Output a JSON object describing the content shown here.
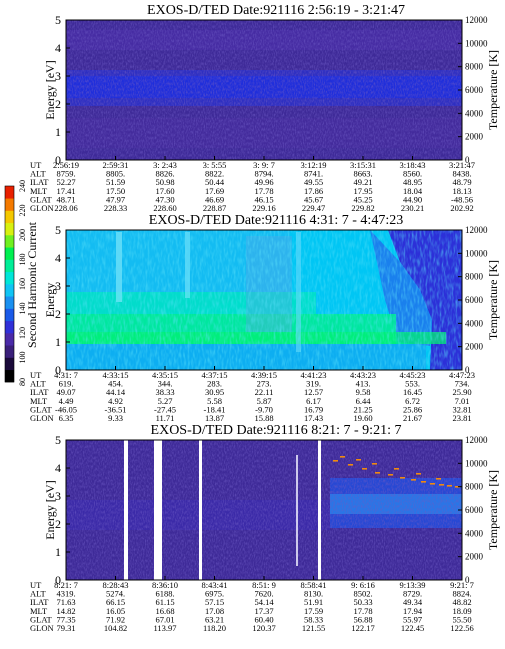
{
  "colorbar": {
    "label": "Second Harmonic Current",
    "ticks": [
      "80",
      "100",
      "120",
      "140",
      "160",
      "180",
      "200",
      "220",
      "240"
    ]
  },
  "chart_data": [
    {
      "type": "heatmap",
      "title": "EXOS-D/TED  Date:921116  2:56:19 - 3:21:47",
      "ylabel": "Energy [eV]",
      "y2label": "Temperature [K]",
      "ylim": [
        0,
        5
      ],
      "y2lim": [
        0,
        12000
      ],
      "yticks": [
        "0",
        "1",
        "2",
        "3",
        "4",
        "5"
      ],
      "y2ticks": [
        "0",
        "2000",
        "4000",
        "6000",
        "8000",
        "10000",
        "12000"
      ],
      "rowlabels": [
        "UT",
        "ALT",
        "ILAT",
        "MLT",
        "GLAT",
        "GLON"
      ],
      "columns": [
        [
          "2:56:19",
          "8759.",
          "52.27",
          "17.41",
          "48.71",
          "228.06"
        ],
        [
          "2:59:31",
          "8805.",
          "51.59",
          "17.50",
          "47.97",
          "228.33"
        ],
        [
          "3: 2:43",
          "8826.",
          "50.98",
          "17.60",
          "47.30",
          "228.60"
        ],
        [
          "3: 5:55",
          "8822.",
          "50.44",
          "17.69",
          "46.69",
          "228.87"
        ],
        [
          "3: 9: 7",
          "8794.",
          "49.96",
          "17.78",
          "46.15",
          "229.16"
        ],
        [
          "3:12:19",
          "8741.",
          "49.55",
          "17.86",
          "45.67",
          "229.47"
        ],
        [
          "3:15:31",
          "8663.",
          "49.21",
          "17.95",
          "45.25",
          "229.82"
        ],
        [
          "3:18:43",
          "8560.",
          "48.95",
          "18.04",
          "44.90",
          "230.21"
        ],
        [
          "3:21:47",
          "8438.",
          "48.79",
          "18.13",
          "-48.56",
          "202.92"
        ]
      ]
    },
    {
      "type": "heatmap",
      "title": "EXOS-D/TED  Date:921116  4:31: 7 - 4:47:23",
      "ylabel": "Energy",
      "y2label": "Temperature [K]",
      "ylim": [
        0,
        5
      ],
      "y2lim": [
        0,
        12000
      ],
      "yticks": [
        "0",
        "1",
        "2",
        "3",
        "4",
        "5"
      ],
      "y2ticks": [
        "0",
        "2000",
        "4000",
        "6000",
        "8000",
        "10000",
        "12000"
      ],
      "rowlabels": [
        "UT",
        "ALT",
        "ILAT",
        "MLT",
        "GLAT",
        "GLON"
      ],
      "columns": [
        [
          "4:31: 7",
          "619.",
          "49.07",
          "4.49",
          "-46.05",
          "6.35"
        ],
        [
          "4:33:15",
          "454.",
          "44.14",
          "4.92",
          "-36.51",
          "9.33"
        ],
        [
          "4:35:15",
          "344.",
          "38.33",
          "5.27",
          "-27.45",
          "11.71"
        ],
        [
          "4:37:15",
          "283.",
          "30.95",
          "5.58",
          "-18.41",
          "13.87"
        ],
        [
          "4:39:15",
          "273.",
          "22.11",
          "5.87",
          "-9.70",
          "15.88"
        ],
        [
          "4:41:23",
          "319.",
          "12.57",
          "6.17",
          "16.79",
          "17.43"
        ],
        [
          "4:43:23",
          "413.",
          "9.58",
          "6.44",
          "21.25",
          "19.60"
        ],
        [
          "4:45:23",
          "553.",
          "16.45",
          "6.72",
          "25.86",
          "21.67"
        ],
        [
          "4:47:23",
          "734.",
          "25.90",
          "7.01",
          "32.81",
          "23.81"
        ]
      ]
    },
    {
      "type": "heatmap",
      "title": "EXOS-D/TED  Date:921116  8:21: 7 - 9:21: 7",
      "ylabel": "Energy [eV]",
      "y2label": "Temperature [K]",
      "ylim": [
        0,
        5
      ],
      "y2lim": [
        0,
        12000
      ],
      "yticks": [
        "0",
        "1",
        "2",
        "3",
        "4",
        "5"
      ],
      "y2ticks": [
        "0",
        "2000",
        "4000",
        "6000",
        "8000",
        "10000",
        "12000"
      ],
      "rowlabels": [
        "UT",
        "ALT",
        "ILAT",
        "MLT",
        "GLAT",
        "GLON"
      ],
      "columns": [
        [
          "8:21: 7",
          "4319.",
          "71.63",
          "14.82",
          "77.35",
          "79.31"
        ],
        [
          "8:28:43",
          "5274.",
          "66.15",
          "16.05",
          "71.92",
          "104.82"
        ],
        [
          "8:36:10",
          "6188.",
          "61.15",
          "16.68",
          "67.01",
          "113.97"
        ],
        [
          "8:43:41",
          "6975.",
          "57.15",
          "17.08",
          "63.21",
          "118.20"
        ],
        [
          "8:51: 9",
          "7620.",
          "54.14",
          "17.37",
          "60.40",
          "120.37"
        ],
        [
          "8:58:41",
          "8130.",
          "51.91",
          "17.59",
          "58.33",
          "121.55"
        ],
        [
          "9: 6:16",
          "8502.",
          "50.33",
          "17.78",
          "56.88",
          "122.17"
        ],
        [
          "9:13:39",
          "8729.",
          "49.34",
          "17.94",
          "55.97",
          "122.45"
        ],
        [
          "9:21: 7",
          "8824.",
          "48.82",
          "18.09",
          "55.50",
          "122.56"
        ]
      ]
    }
  ]
}
